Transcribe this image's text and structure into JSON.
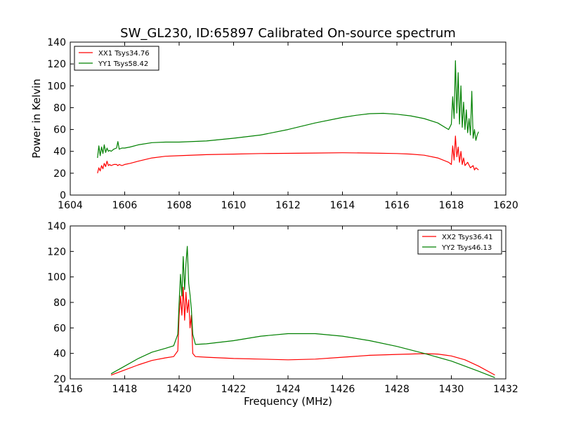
{
  "figure": {
    "title": "SW_GL230, ID:65897 Calibrated On-source spectrum",
    "shared_ylabel": "Power in Kelvin",
    "shared_xlabel": "Frequency (MHz)"
  },
  "chart_data": [
    {
      "type": "line",
      "title": "SW_GL230, ID:65897 Calibrated On-source spectrum",
      "xlabel": "",
      "ylabel": "Power in Kelvin",
      "xlim": [
        1604,
        1620
      ],
      "ylim": [
        0,
        140
      ],
      "xticks": [
        1604,
        1606,
        1608,
        1610,
        1612,
        1614,
        1616,
        1618,
        1620
      ],
      "yticks": [
        0,
        20,
        40,
        60,
        80,
        100,
        120,
        140
      ],
      "legend": "top-left",
      "series": [
        {
          "name": "XX1 Tsys34.76",
          "color": "#ff0000",
          "x": [
            1605.0,
            1605.05,
            1605.1,
            1605.15,
            1605.2,
            1605.25,
            1605.3,
            1605.35,
            1605.4,
            1605.45,
            1605.5,
            1605.6,
            1605.7,
            1605.75,
            1605.8,
            1605.9,
            1606.0,
            1606.2,
            1606.5,
            1607.0,
            1607.5,
            1608.0,
            1609.0,
            1610.0,
            1611.0,
            1612.0,
            1613.0,
            1614.0,
            1615.0,
            1616.0,
            1616.5,
            1617.0,
            1617.5,
            1617.9,
            1618.0,
            1618.05,
            1618.1,
            1618.15,
            1618.2,
            1618.25,
            1618.3,
            1618.35,
            1618.4,
            1618.45,
            1618.5,
            1618.6,
            1618.7,
            1618.8,
            1618.85,
            1618.9,
            1619.0
          ],
          "y": [
            20,
            25,
            22,
            27,
            24,
            29,
            26,
            31,
            27,
            28,
            27,
            28,
            28,
            27,
            28,
            27,
            28,
            29,
            31,
            34,
            35.5,
            36,
            37,
            37.5,
            38,
            38.2,
            38.5,
            38.7,
            38.5,
            38,
            37.5,
            36.5,
            34,
            30,
            28,
            45,
            32,
            54,
            35,
            44,
            30,
            40,
            28,
            34,
            27,
            30,
            25,
            27,
            23,
            25,
            23
          ]
        },
        {
          "name": "YY1 Tsys58.42",
          "color": "#008000",
          "x": [
            1605.0,
            1605.05,
            1605.1,
            1605.15,
            1605.2,
            1605.25,
            1605.3,
            1605.35,
            1605.4,
            1605.45,
            1605.5,
            1605.6,
            1605.7,
            1605.75,
            1605.8,
            1605.9,
            1606.0,
            1606.2,
            1606.5,
            1607.0,
            1607.5,
            1608.0,
            1609.0,
            1610.0,
            1611.0,
            1612.0,
            1613.0,
            1614.0,
            1614.5,
            1615.0,
            1615.5,
            1616.0,
            1616.5,
            1617.0,
            1617.5,
            1617.9,
            1618.0,
            1618.05,
            1618.1,
            1618.15,
            1618.2,
            1618.25,
            1618.3,
            1618.35,
            1618.4,
            1618.45,
            1618.5,
            1618.55,
            1618.6,
            1618.65,
            1618.7,
            1618.75,
            1618.8,
            1618.85,
            1618.9,
            1618.95,
            1619.0
          ],
          "y": [
            34,
            45,
            36,
            44,
            38,
            46,
            39,
            43,
            40,
            41,
            40,
            42,
            43,
            49,
            42,
            43,
            43,
            44,
            46,
            48,
            48.5,
            48.5,
            49.5,
            52,
            55,
            60,
            66,
            71,
            73,
            74.5,
            74.8,
            74,
            72.5,
            70,
            66,
            60,
            65,
            90,
            70,
            123,
            75,
            112,
            65,
            100,
            62,
            85,
            60,
            78,
            57,
            70,
            55,
            95,
            52,
            60,
            50,
            55,
            58
          ]
        }
      ]
    },
    {
      "type": "line",
      "title": "",
      "xlabel": "Frequency (MHz)",
      "ylabel": "",
      "xlim": [
        1416,
        1432
      ],
      "ylim": [
        20,
        140
      ],
      "xticks": [
        1416,
        1418,
        1420,
        1422,
        1424,
        1426,
        1428,
        1430,
        1432
      ],
      "yticks": [
        20,
        40,
        60,
        80,
        100,
        120,
        140
      ],
      "legend": "top-right",
      "series": [
        {
          "name": "XX2 Tsys36.41",
          "color": "#ff0000",
          "x": [
            1417.5,
            1418.0,
            1418.5,
            1419.0,
            1419.5,
            1419.8,
            1419.95,
            1420.0,
            1420.05,
            1420.1,
            1420.15,
            1420.2,
            1420.25,
            1420.3,
            1420.35,
            1420.4,
            1420.45,
            1420.5,
            1420.6,
            1421.0,
            1422.0,
            1423.0,
            1424.0,
            1425.0,
            1426.0,
            1427.0,
            1428.0,
            1429.0,
            1429.5,
            1430.0,
            1430.5,
            1431.0,
            1431.6
          ],
          "y": [
            23,
            27,
            31,
            34.5,
            36.5,
            37.5,
            42,
            70,
            85,
            70,
            92,
            66,
            88,
            72,
            82,
            60,
            70,
            40,
            37.5,
            37,
            36,
            35.5,
            35,
            35.5,
            37,
            38.5,
            39.2,
            39.8,
            39.5,
            38,
            35,
            30,
            23
          ]
        },
        {
          "name": "YY2 Tsys46.13",
          "color": "#008000",
          "x": [
            1417.5,
            1418.0,
            1418.5,
            1419.0,
            1419.5,
            1419.8,
            1419.95,
            1420.0,
            1420.05,
            1420.1,
            1420.15,
            1420.2,
            1420.25,
            1420.3,
            1420.35,
            1420.4,
            1420.45,
            1420.5,
            1420.6,
            1421.0,
            1422.0,
            1423.0,
            1424.0,
            1425.0,
            1426.0,
            1427.0,
            1428.0,
            1429.0,
            1430.0,
            1430.5,
            1431.0,
            1431.6
          ],
          "y": [
            24,
            30,
            36,
            41,
            44,
            46,
            55,
            80,
            102,
            85,
            116,
            90,
            110,
            124,
            95,
            86,
            75,
            55,
            47,
            47.5,
            50,
            53.5,
            55.5,
            55.5,
            53.5,
            50,
            45.5,
            40,
            34,
            30,
            26,
            21
          ]
        }
      ]
    }
  ]
}
